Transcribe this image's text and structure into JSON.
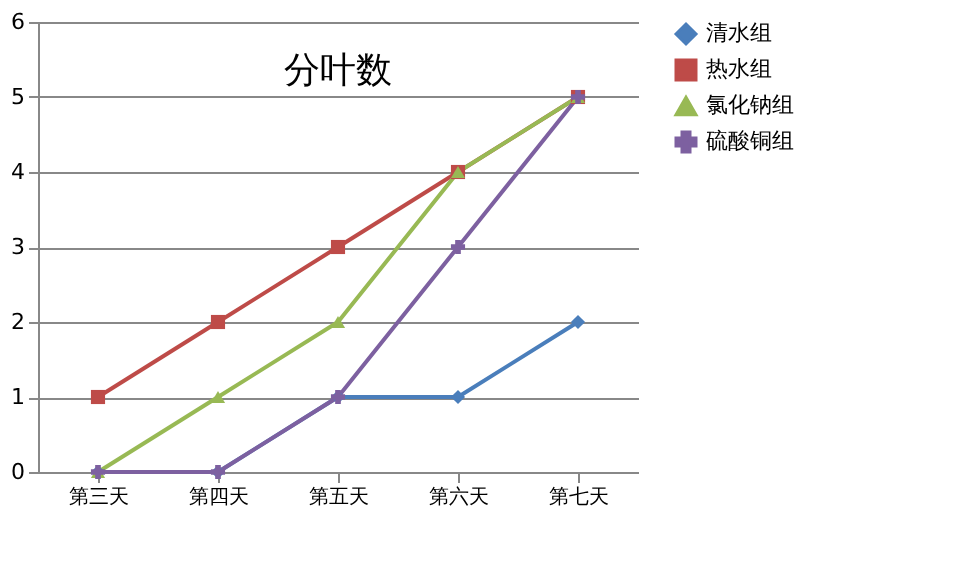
{
  "chart_data": {
    "type": "line",
    "title": "分叶数",
    "categories": [
      "第三天",
      "第四天",
      "第五天",
      "第六天",
      "第七天"
    ],
    "series": [
      {
        "name": "清水组",
        "color": "#4a7ebb",
        "marker": "diamond",
        "values": [
          0,
          0,
          1,
          1,
          2
        ]
      },
      {
        "name": "热水组",
        "color": "#be4b48",
        "marker": "square",
        "values": [
          1,
          2,
          3,
          4,
          5
        ]
      },
      {
        "name": "氯化钠组",
        "color": "#98b954",
        "marker": "triangle",
        "values": [
          0,
          1,
          2,
          4,
          5
        ]
      },
      {
        "name": "硫酸铜组",
        "color": "#7d60a0",
        "marker": "cross",
        "values": [
          0,
          0,
          1,
          3,
          5
        ]
      }
    ],
    "ylim": [
      0,
      6
    ],
    "yticks": [
      0,
      1,
      2,
      3,
      4,
      5,
      6
    ],
    "grid": "y",
    "legend": "right",
    "line_style": "solid"
  }
}
